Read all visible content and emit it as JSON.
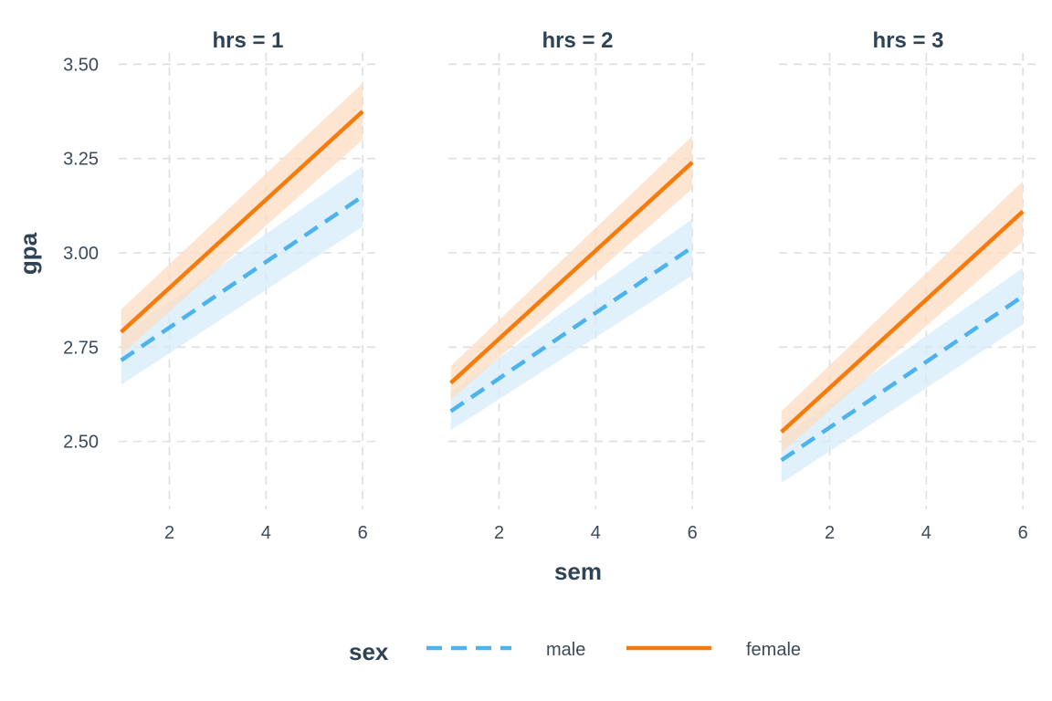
{
  "chart_data": {
    "type": "line",
    "facet_variable": "hrs",
    "panels": [
      {
        "strip": "hrs = 1",
        "series": [
          {
            "name": "male",
            "x": [
              1,
              6
            ],
            "y": [
              2.715,
              3.15
            ],
            "lower": [
              2.65,
              3.07
            ],
            "upper": [
              2.78,
              3.23
            ]
          },
          {
            "name": "female",
            "x": [
              1,
              6
            ],
            "y": [
              2.79,
              3.375
            ],
            "lower": [
              2.73,
              3.3
            ],
            "upper": [
              2.85,
              3.45
            ]
          }
        ]
      },
      {
        "strip": "hrs = 2",
        "series": [
          {
            "name": "male",
            "x": [
              1,
              6
            ],
            "y": [
              2.58,
              3.015
            ],
            "lower": [
              2.53,
              2.94
            ],
            "upper": [
              2.63,
              3.09
            ]
          },
          {
            "name": "female",
            "x": [
              1,
              6
            ],
            "y": [
              2.655,
              3.24
            ],
            "lower": [
              2.61,
              3.17
            ],
            "upper": [
              2.7,
              3.31
            ]
          }
        ]
      },
      {
        "strip": "hrs = 3",
        "series": [
          {
            "name": "male",
            "x": [
              1,
              6
            ],
            "y": [
              2.45,
              2.885
            ],
            "lower": [
              2.39,
              2.81
            ],
            "upper": [
              2.51,
              2.96
            ]
          },
          {
            "name": "female",
            "x": [
              1,
              6
            ],
            "y": [
              2.525,
              3.11
            ],
            "lower": [
              2.47,
              3.03
            ],
            "upper": [
              2.58,
              3.19
            ]
          }
        ]
      }
    ],
    "xlabel": "sem",
    "ylabel": "gpa",
    "xticks": [
      2,
      4,
      6
    ],
    "xtick_labels": [
      "2",
      "4",
      "6"
    ],
    "yticks": [
      2.5,
      2.75,
      3.0,
      3.25,
      3.5
    ],
    "ytick_labels": [
      "2.50",
      "2.75",
      "3.00",
      "3.25",
      "3.50"
    ],
    "xlim": [
      0.95,
      6.3
    ],
    "ylim": [
      2.32,
      3.53
    ],
    "grid": true,
    "grid_style": "dashed",
    "legend": {
      "title": "sex",
      "position": "bottom",
      "entries": [
        {
          "label": "male",
          "color": "#4db3ee",
          "linestyle": "dashed"
        },
        {
          "label": "female",
          "color": "#f57c0c",
          "linestyle": "solid"
        }
      ]
    },
    "colors": {
      "male": "#4db3ee",
      "female": "#f57c0c",
      "male_band": "#d6ecfb",
      "female_band": "#fddcc2",
      "grid": "#dedede"
    }
  }
}
